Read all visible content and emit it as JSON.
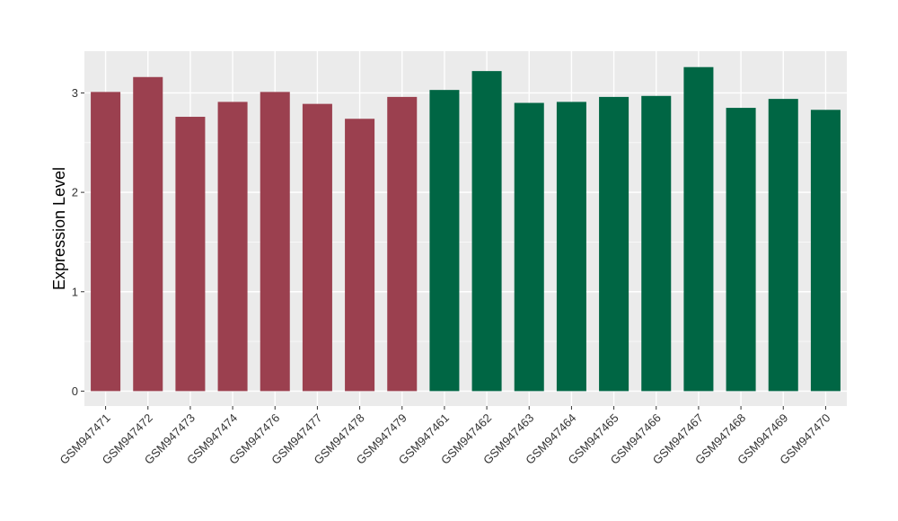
{
  "chart_data": {
    "type": "bar",
    "title": "",
    "xlabel": "",
    "ylabel": "Expression Level",
    "ylim": [
      -0.15,
      3.42
    ],
    "yticks": [
      0,
      1,
      2,
      3
    ],
    "grid": true,
    "categories": [
      "GSM947471",
      "GSM947472",
      "GSM947473",
      "GSM947474",
      "GSM947476",
      "GSM947477",
      "GSM947478",
      "GSM947479",
      "GSM947461",
      "GSM947462",
      "GSM947463",
      "GSM947464",
      "GSM947465",
      "GSM947466",
      "GSM947467",
      "GSM947468",
      "GSM947469",
      "GSM947470"
    ],
    "values": [
      3.01,
      3.16,
      2.76,
      2.91,
      3.01,
      2.89,
      2.74,
      2.96,
      3.03,
      3.22,
      2.9,
      2.91,
      2.96,
      2.97,
      3.26,
      2.85,
      2.94,
      2.83
    ],
    "groups": [
      "a",
      "a",
      "a",
      "a",
      "a",
      "a",
      "a",
      "a",
      "b",
      "b",
      "b",
      "b",
      "b",
      "b",
      "b",
      "b",
      "b",
      "b"
    ],
    "colors": {
      "a": "#9b404f",
      "b": "#006644",
      "panel": "#ebebeb",
      "grid": "#ffffff"
    }
  }
}
